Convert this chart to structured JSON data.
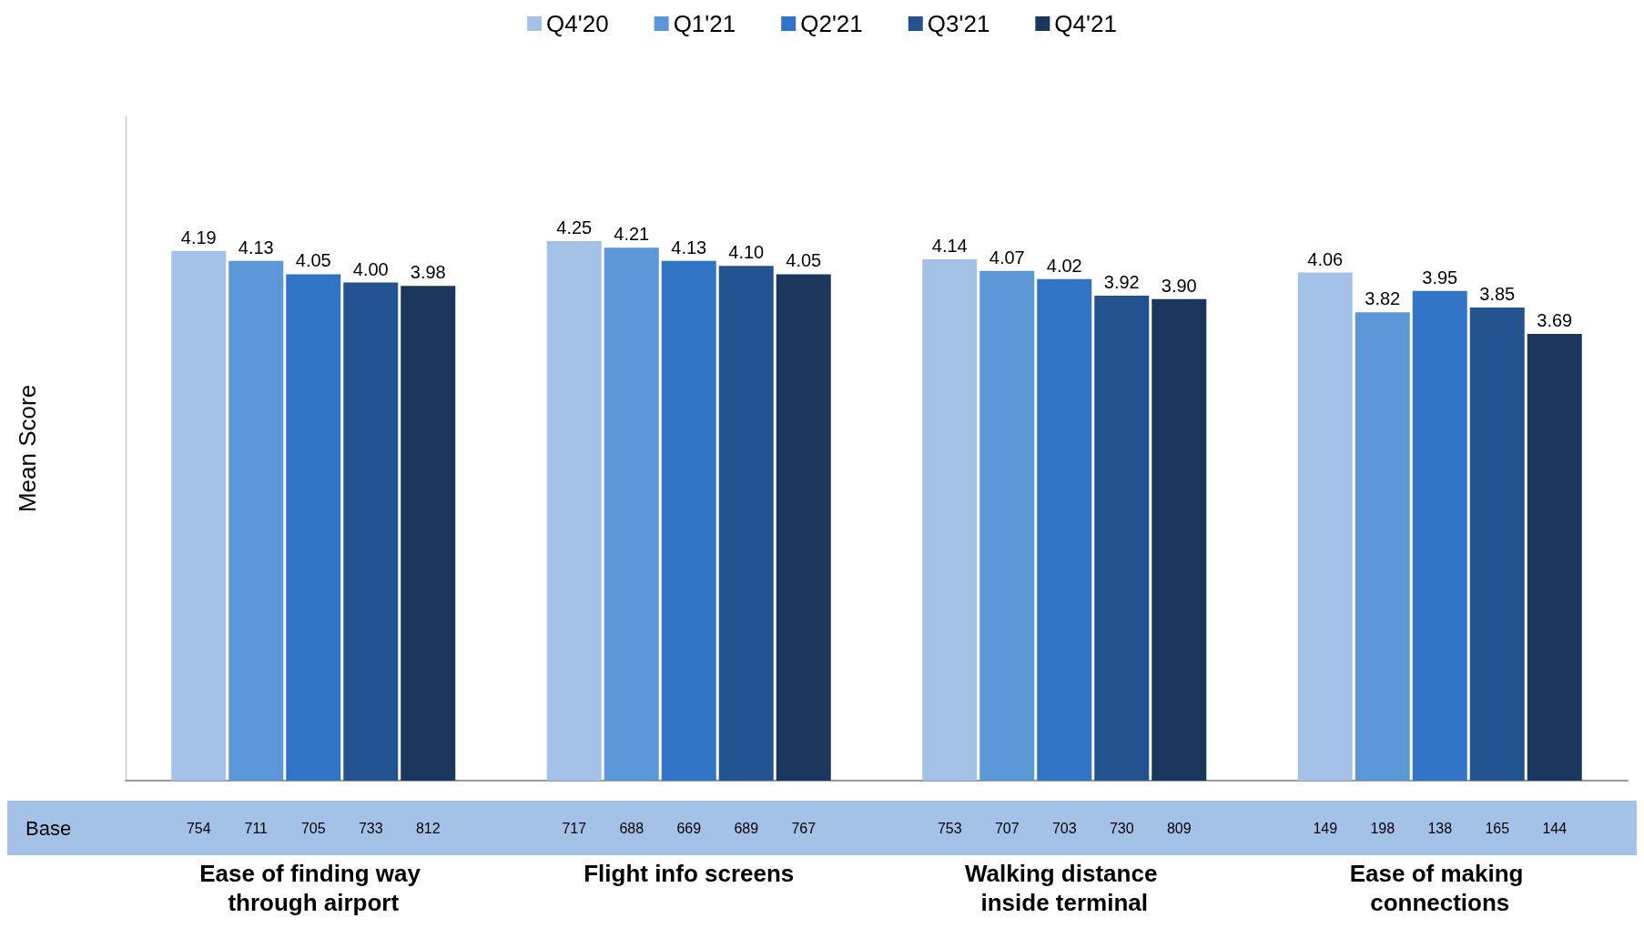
{
  "chart_data": {
    "type": "bar",
    "ylabel": "Mean Score",
    "categories": [
      "Ease of finding way through airport",
      "Flight info screens",
      "Walking distance inside terminal",
      "Ease of making connections"
    ],
    "series": [
      {
        "name": "Q4'20",
        "color": "#a4c2e8",
        "values": [
          4.19,
          4.25,
          4.14,
          4.06
        ],
        "value_labels": [
          "4.19",
          "4.25",
          "4.14",
          "4.06"
        ]
      },
      {
        "name": "Q1'21",
        "color": "#5b96d6",
        "values": [
          4.13,
          4.21,
          4.07,
          3.82
        ],
        "value_labels": [
          "4.13",
          "4.21",
          "4.07",
          "3.82"
        ]
      },
      {
        "name": "Q2'21",
        "color": "#3174c5",
        "values": [
          4.05,
          4.13,
          4.02,
          3.95
        ],
        "value_labels": [
          "4.05",
          "4.13",
          "4.02",
          "3.95"
        ]
      },
      {
        "name": "Q3'21",
        "color": "#22538e",
        "values": [
          4.0,
          4.1,
          3.92,
          3.85
        ],
        "value_labels": [
          "4.00",
          "4.10",
          "3.92",
          "3.85"
        ]
      },
      {
        "name": "Q4'21",
        "color": "#1a365c",
        "values": [
          3.98,
          4.05,
          3.9,
          3.69
        ],
        "value_labels": [
          "3.98",
          "4.05",
          "3.90",
          "3.69"
        ]
      }
    ],
    "ylim": [
      1,
      5
    ],
    "tick_labels": "x",
    "grid": false,
    "legend": "top",
    "annotations": [
      "Base",
      "754",
      "711",
      "705",
      "733",
      "812",
      "717",
      "688",
      "669",
      "689",
      "767",
      "753",
      "707",
      "703",
      "730",
      "809",
      "149",
      "198",
      "138",
      "165",
      "144"
    ]
  }
}
